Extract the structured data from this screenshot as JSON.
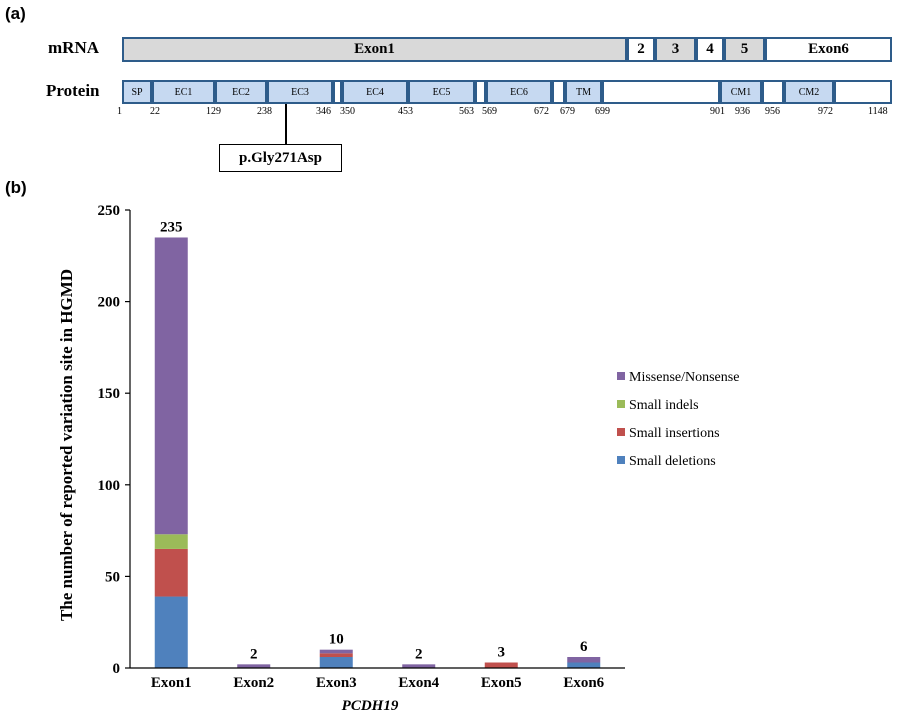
{
  "panel_a": {
    "label": "(a)",
    "mrna_label": "mRNA",
    "protein_label": "Protein",
    "mrna_exons": [
      "Exon1",
      "2",
      "3",
      "4",
      "5",
      "Exon6"
    ],
    "protein_domains": [
      "SP",
      "EC1",
      "EC2",
      "EC3",
      "",
      "EC4",
      "EC5",
      "",
      "EC6",
      "",
      "TM",
      "",
      "CM1",
      "",
      "CM2",
      ""
    ],
    "positions": [
      "1",
      "22",
      "129",
      "238",
      "346",
      "350",
      "453",
      "563",
      "569",
      "672",
      "679",
      "699",
      "901",
      "936",
      "956",
      "972",
      "1148"
    ],
    "variant": "p.Gly271Asp"
  },
  "panel_b": {
    "label": "(b)"
  },
  "chart_data": {
    "type": "bar",
    "stacked": true,
    "categories": [
      "Exon1",
      "Exon2",
      "Exon3",
      "Exon4",
      "Exon5",
      "Exon6"
    ],
    "series": [
      {
        "name": "Small deletions",
        "color": "#4f81bd",
        "values": [
          39,
          0,
          6,
          0,
          0,
          3
        ]
      },
      {
        "name": "Small insertions",
        "color": "#c0504d",
        "values": [
          26,
          0,
          2,
          0,
          3,
          0
        ]
      },
      {
        "name": "Small indels",
        "color": "#9bbb59",
        "values": [
          8,
          0,
          0,
          0,
          0,
          0
        ]
      },
      {
        "name": "Missense/Nonsense",
        "color": "#8064a2",
        "values": [
          162,
          2,
          2,
          2,
          0,
          3
        ]
      }
    ],
    "totals": [
      235,
      2,
      10,
      2,
      3,
      6
    ],
    "total_labels": [
      "235",
      "2",
      "10",
      "2",
      "3",
      "6"
    ],
    "legend_order": [
      "Missense/Nonsense",
      "Small indels",
      "Small insertions",
      "Small deletions"
    ],
    "legend_position": "right",
    "xlabel": "PCDH19",
    "ylabel": "The number of reported variation site in HGMD",
    "ylim": [
      0,
      250
    ],
    "yticks": [
      0,
      50,
      100,
      150,
      200,
      250
    ],
    "ytick_labels": [
      "0",
      "50",
      "100",
      "150",
      "200",
      "250"
    ],
    "grid": false
  }
}
